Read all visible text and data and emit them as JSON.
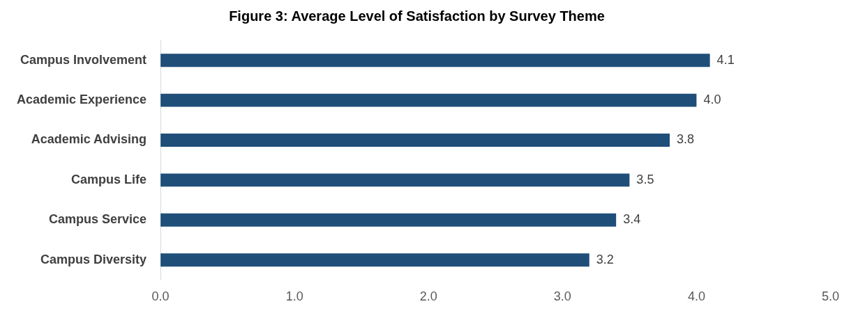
{
  "chart_data": {
    "type": "bar",
    "orientation": "horizontal",
    "title": "Figure 3: Average Level of Satisfaction by Survey Theme",
    "categories": [
      "Campus Involvement",
      "Academic Experience",
      "Academic Advising",
      "Campus Life",
      "Campus Service",
      "Campus Diversity"
    ],
    "values": [
      4.1,
      4.0,
      3.8,
      3.5,
      3.4,
      3.2
    ],
    "value_labels": [
      "4.1",
      "4.0",
      "3.8",
      "3.5",
      "3.4",
      "3.2"
    ],
    "color": "#1f4e79",
    "xlim": [
      0,
      5
    ],
    "xticks": [
      {
        "value": 0,
        "label": "0.0"
      },
      {
        "value": 1,
        "label": "1.0"
      },
      {
        "value": 2,
        "label": "2.0"
      },
      {
        "value": 3,
        "label": "3.0"
      },
      {
        "value": 4,
        "label": "4.0"
      },
      {
        "value": 5,
        "label": "5.0"
      }
    ],
    "grid": false,
    "legend": false
  }
}
